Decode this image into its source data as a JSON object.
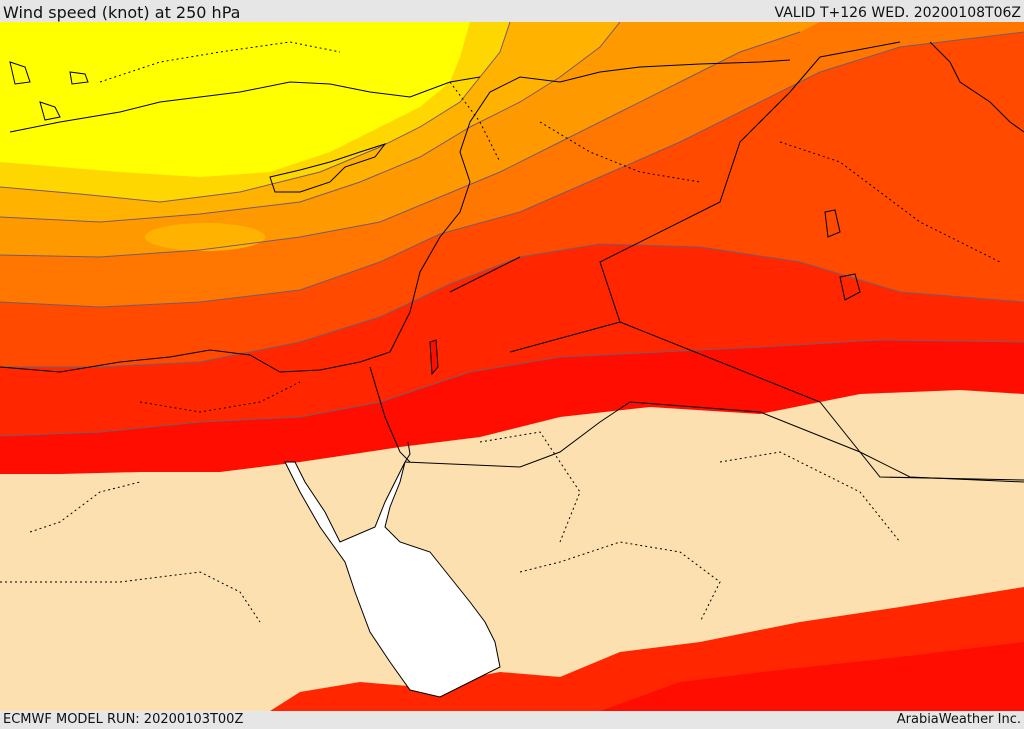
{
  "header": {
    "title": "Wind speed (knot) at 250 hPa",
    "valid_time": "VALID T+126 WED. 20200108T06Z"
  },
  "footer": {
    "model_run": "ECMWF MODEL RUN: 20200103T00Z",
    "credit": "ArabiaWeather Inc."
  },
  "map": {
    "variable": "wind speed",
    "level": "250 hPa",
    "colors": {
      "lowest_band": "#fde0b0",
      "band_yellow": "#ffff00",
      "band_light_orange": "#ffd700",
      "band_orange_1": "#ffb300",
      "band_orange_2": "#ff9900",
      "band_orange_3": "#ff7700",
      "band_red_orange": "#ff4a00",
      "band_red_1": "#ff2600",
      "band_red_2": "#ff0d00",
      "water_red_sea": "#ffffff",
      "contour": "#7a5a6a",
      "border": "#000000"
    }
  }
}
